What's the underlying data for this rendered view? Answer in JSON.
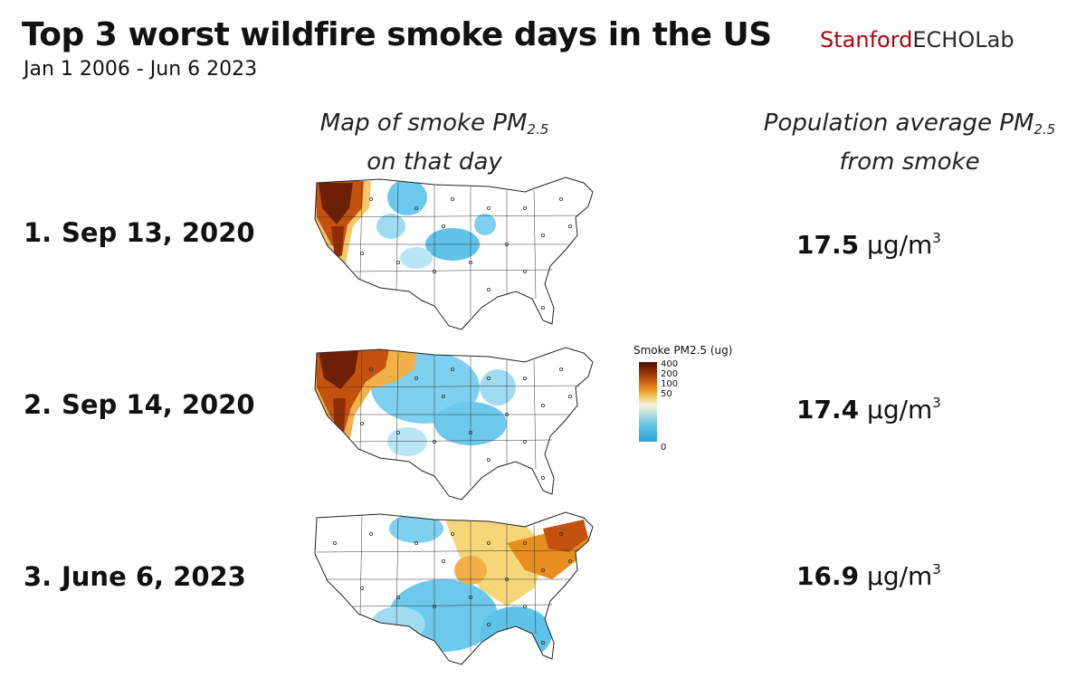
{
  "header": {
    "title": "Top 3 worst wildfire smoke days in the US",
    "subtitle": "Jan 1 2006 - Jun 6 2023",
    "logo_part1": "Stanford",
    "logo_part2": "ECHOLab"
  },
  "columns": {
    "map_heading_line1": "Map of smoke PM",
    "map_heading_sub": "2.5",
    "map_heading_line2": "on that day",
    "pop_heading_line1": "Population average PM",
    "pop_heading_sub": "2.5",
    "pop_heading_line2": "from smoke"
  },
  "days": [
    {
      "rank": "1.",
      "date": "Sep 13, 2020",
      "value": "17.5",
      "unit": "µg/m",
      "unit_exp": "3"
    },
    {
      "rank": "2.",
      "date": "Sep 14, 2020",
      "value": "17.4",
      "unit": "µg/m",
      "unit_exp": "3"
    },
    {
      "rank": "3.",
      "date": "June 6, 2023",
      "value": "16.9",
      "unit": "µg/m",
      "unit_exp": "3"
    }
  ],
  "legend": {
    "title": "Smoke PM2.5 (ug)",
    "ticks": [
      "400",
      "200",
      "100",
      "50",
      "0"
    ],
    "colors": [
      "#4d1004",
      "#8e2d07",
      "#c4520f",
      "#e88e1e",
      "#f5d77a",
      "#f7f2da",
      "#5fc4e8",
      "#2ea2d8"
    ]
  }
}
